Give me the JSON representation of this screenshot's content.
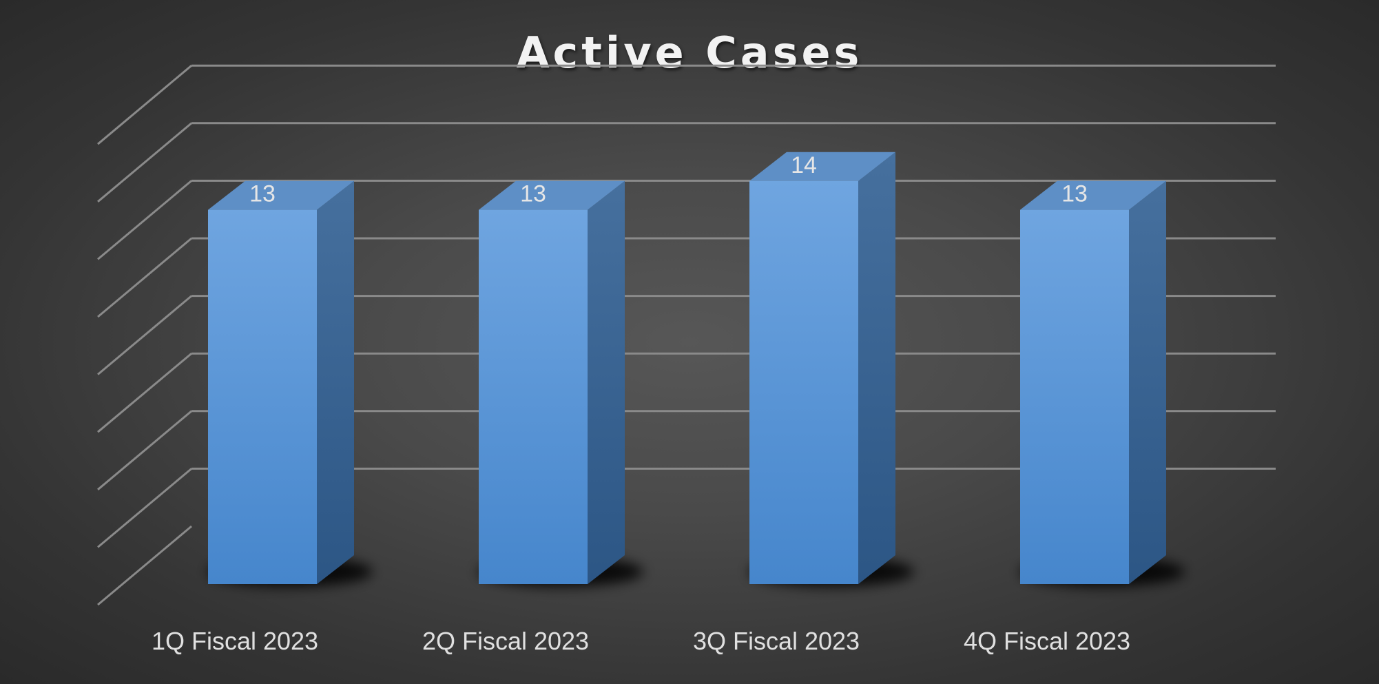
{
  "chart_data": {
    "type": "bar",
    "style": "3d-column",
    "title": "Active Cases",
    "categories": [
      "1Q Fiscal 2023",
      "2Q Fiscal 2023",
      "3Q Fiscal 2023",
      "4Q Fiscal 2023"
    ],
    "values": [
      13,
      13,
      14,
      13
    ],
    "xlabel": "",
    "ylabel": "",
    "ylim": [
      0,
      16
    ],
    "grid": true,
    "gridline_count": 8,
    "legend": "none",
    "show_data_labels": true,
    "colors": {
      "bar_front_top": "#6fa5e0",
      "bar_front_bottom": "#4686cc",
      "bar_side": "#35618f",
      "bar_top": "#5e8fc6",
      "gridline": "#8a8a8a",
      "background": "#474747"
    }
  }
}
